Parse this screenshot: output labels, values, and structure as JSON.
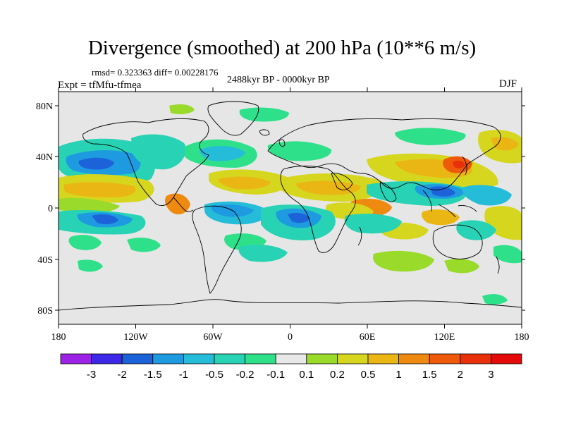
{
  "title": "Divergence (smoothed) at 200 hPa (10**6 m/s)",
  "stats": "rmsd= 0.323363 diff= 0.00228176",
  "experiment": "Expt = tfMfu-tfmea",
  "period": "2488kyr BP - 0000kyr BP",
  "season": "DJF",
  "map": {
    "lat_ticks": [
      "80N",
      "40N",
      "0",
      "40S",
      "80S"
    ],
    "lon_ticks": [
      "180",
      "120W",
      "60W",
      "0",
      "60E",
      "120E",
      "180"
    ],
    "background_color": "#e6e6e6"
  },
  "colorbar": {
    "colors": [
      "#9c22e6",
      "#3c28e6",
      "#1c62d8",
      "#1e9ae0",
      "#24bcd8",
      "#28d2b4",
      "#2ee08a",
      "#e8e8e8",
      "#9ada2a",
      "#d6d61e",
      "#eab614",
      "#ee8a10",
      "#ee5a0a",
      "#e8300a",
      "#e40a08"
    ],
    "labels": [
      "-3",
      "-2",
      "-1.5",
      "-1",
      "-0.5",
      "-0.2",
      "-0.1",
      "0.1",
      "0.2",
      "0.5",
      "1",
      "1.5",
      "2",
      "3"
    ]
  }
}
